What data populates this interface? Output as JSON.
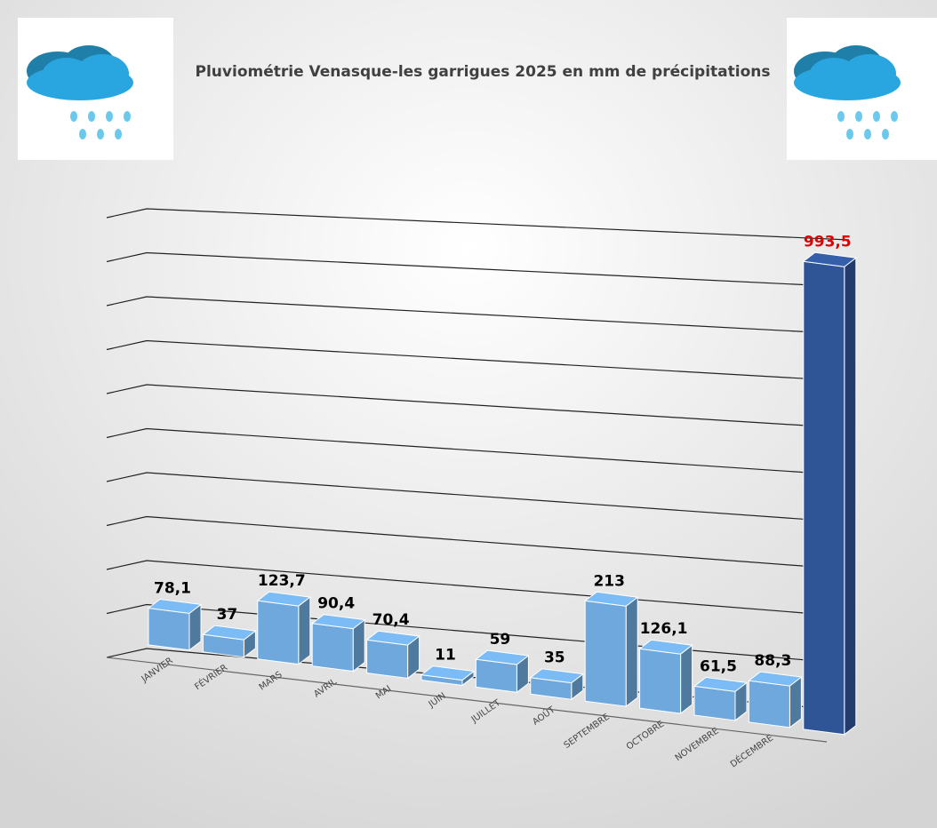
{
  "chart_data": {
    "type": "bar3d",
    "title": "Pluviométrie Venasque-les garrigues 2025 en mm de précipitations",
    "categories": [
      "JANVIER",
      "FÉVRIER",
      "MARS",
      "AVRIL",
      "MAI",
      "JUIN",
      "JUILLET",
      "AOÛT",
      "SEPTEMBRE",
      "OCTOBRE",
      "NOVEMBRE",
      "DÉCEMBRE",
      null
    ],
    "values": [
      78.1,
      37,
      123.7,
      90.4,
      70.4,
      11,
      59,
      35,
      213,
      126.1,
      61.5,
      88.3,
      993.5
    ],
    "value_labels": [
      "78,1",
      "37",
      "123,7",
      "90,4",
      "70,4",
      "11",
      "59",
      "35",
      "213",
      "126,1",
      "61,5",
      "88,3",
      "993,5"
    ],
    "colors": [
      "#6fa8dc",
      "#6fa8dc",
      "#6fa8dc",
      "#6fa8dc",
      "#6fa8dc",
      "#6fa8dc",
      "#6fa8dc",
      "#6fa8dc",
      "#6fa8dc",
      "#6fa8dc",
      "#6fa8dc",
      "#6fa8dc",
      "#2f5597"
    ],
    "label_colors": [
      "#000000",
      "#000000",
      "#000000",
      "#000000",
      "#000000",
      "#000000",
      "#000000",
      "#000000",
      "#000000",
      "#000000",
      "#000000",
      "#000000",
      "#e00000"
    ],
    "ylim": [
      0,
      1000
    ],
    "yticks": [
      0,
      100,
      200,
      300,
      400,
      500,
      600,
      700,
      800,
      900,
      1000
    ],
    "grid": true
  }
}
